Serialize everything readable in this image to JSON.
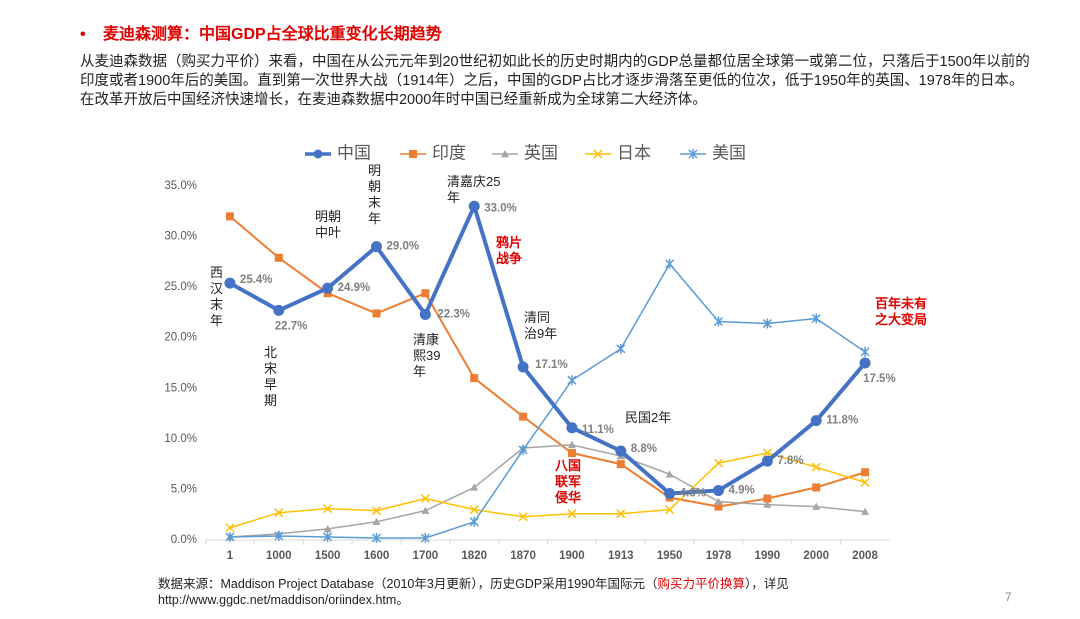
{
  "title": "麦迪森测算：中国GDP占全球比重变化长期趋势",
  "intro": "从麦迪森数据（购买力平价）来看，中国在从公元元年到20世纪初如此长的历史时期内的GDP总量都位居全球第一或第二位，只落后于1500年以前的印度或者1900年后的美国。直到第一次世界大战（1914年）之后，中国的GDP占比才逐步滑落至更低的位次，低于1950年的英国、1978年的日本。在改革开放后中国经济快速增长，在麦迪森数据中2000年时中国已经重新成为全球第二大经济体。",
  "source": [
    "数据来源：Maddison Project Database（2010年3月更新），历史GDP采用1990年国际元（",
    "购买力平价换算",
    "），详见http://www.ggdc.net/maddison/oriindex.htm。"
  ],
  "page_number": 7,
  "chart_data": {
    "type": "line",
    "categories": [
      "1",
      "1000",
      "1500",
      "1600",
      "1700",
      "1820",
      "1870",
      "1900",
      "1913",
      "1950",
      "1978",
      "1990",
      "2000",
      "2008"
    ],
    "series": [
      {
        "name": "中国",
        "color": "#4472c4",
        "marker": "circle",
        "values": [
          25.4,
          22.7,
          24.9,
          29.0,
          22.3,
          33.0,
          17.1,
          11.1,
          8.8,
          4.6,
          4.9,
          7.8,
          11.8,
          17.5
        ],
        "value_labels": [
          "25.4%",
          "22.7%",
          "24.9%",
          "29.0%",
          "22.3%",
          "33.0%",
          "17.1%",
          "11.1%",
          "8.8%",
          "4.6%",
          "4.9%",
          "7.8%",
          "11.8%",
          "17.5%"
        ]
      },
      {
        "name": "印度",
        "color": "#ed7d31",
        "marker": "square",
        "values": [
          32.0,
          27.9,
          24.4,
          22.4,
          24.4,
          16.0,
          12.2,
          8.6,
          7.5,
          4.2,
          3.3,
          4.1,
          5.2,
          6.7
        ]
      },
      {
        "name": "英国",
        "color": "#a5a5a5",
        "marker": "triangle",
        "values": [
          0.3,
          0.6,
          1.1,
          1.8,
          2.9,
          5.2,
          9.1,
          9.4,
          8.3,
          6.5,
          3.8,
          3.5,
          3.3,
          2.8
        ]
      },
      {
        "name": "日本",
        "color": "#ffc000",
        "marker": "x",
        "values": [
          1.2,
          2.7,
          3.1,
          2.9,
          4.1,
          3.0,
          2.3,
          2.6,
          2.6,
          3.0,
          7.6,
          8.6,
          7.2,
          5.7
        ]
      },
      {
        "name": "美国",
        "color": "#5b9bd5",
        "marker": "star",
        "values": [
          0.3,
          0.4,
          0.3,
          0.2,
          0.2,
          1.8,
          8.9,
          15.8,
          18.9,
          27.3,
          21.6,
          21.4,
          21.9,
          18.6
        ]
      }
    ],
    "ylim": [
      0,
      35
    ],
    "yticks": [
      {
        "value": 0,
        "label": "0.0%"
      },
      {
        "value": 5,
        "label": "5.0%"
      },
      {
        "value": 10,
        "label": "10.0%"
      },
      {
        "value": 15,
        "label": "15.0%"
      },
      {
        "value": 20,
        "label": "20.0%"
      },
      {
        "value": 25,
        "label": "25.0%"
      },
      {
        "value": 30,
        "label": "30.0%"
      },
      {
        "value": 35,
        "label": "35.0%"
      }
    ],
    "grid": false,
    "legend": "top",
    "annotations": [
      {
        "text": "西汉末年"
      },
      {
        "text": "北宋早期"
      },
      {
        "text": "明朝中叶"
      },
      {
        "text": "明朝末年"
      },
      {
        "text": "清嘉庆25年"
      },
      {
        "text": "清康熙39年"
      },
      {
        "text": "鸦片战争",
        "color": "red"
      },
      {
        "text": "清同治9年"
      },
      {
        "text": "民国2年"
      },
      {
        "text": "八国联军侵华",
        "color": "red"
      },
      {
        "text": "百年未有之大变局",
        "color": "red"
      }
    ]
  }
}
